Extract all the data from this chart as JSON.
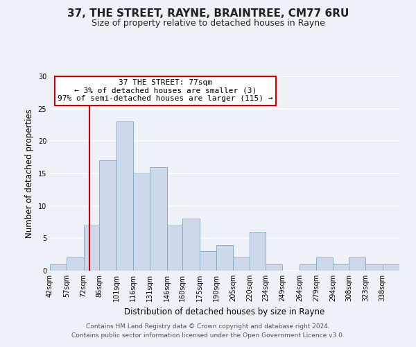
{
  "title": "37, THE STREET, RAYNE, BRAINTREE, CM77 6RU",
  "subtitle": "Size of property relative to detached houses in Rayne",
  "xlabel": "Distribution of detached houses by size in Rayne",
  "ylabel": "Number of detached properties",
  "bar_color": "#cdd9ea",
  "bar_edge_color": "#8aaec8",
  "bin_labels": [
    "42sqm",
    "57sqm",
    "72sqm",
    "86sqm",
    "101sqm",
    "116sqm",
    "131sqm",
    "146sqm",
    "160sqm",
    "175sqm",
    "190sqm",
    "205sqm",
    "220sqm",
    "234sqm",
    "249sqm",
    "264sqm",
    "279sqm",
    "294sqm",
    "308sqm",
    "323sqm",
    "338sqm"
  ],
  "bin_edges": [
    42,
    57,
    72,
    86,
    101,
    116,
    131,
    146,
    160,
    175,
    190,
    205,
    220,
    234,
    249,
    264,
    279,
    294,
    308,
    323,
    338,
    353
  ],
  "counts": [
    1,
    2,
    7,
    17,
    23,
    15,
    16,
    7,
    8,
    3,
    4,
    2,
    6,
    1,
    0,
    1,
    2,
    1,
    2,
    1,
    1
  ],
  "ylim": [
    0,
    30
  ],
  "yticks": [
    0,
    5,
    10,
    15,
    20,
    25,
    30
  ],
  "vline_x": 77,
  "vline_color": "#cc0000",
  "annotation_title": "37 THE STREET: 77sqm",
  "annotation_line1": "← 3% of detached houses are smaller (3)",
  "annotation_line2": "97% of semi-detached houses are larger (115) →",
  "annotation_box_color": "#ffffff",
  "annotation_box_edge": "#cc0000",
  "footer_line1": "Contains HM Land Registry data © Crown copyright and database right 2024.",
  "footer_line2": "Contains public sector information licensed under the Open Government Licence v3.0.",
  "background_color": "#eef2f8",
  "grid_color": "#ffffff",
  "title_fontsize": 11,
  "subtitle_fontsize": 9,
  "axis_label_fontsize": 8.5,
  "tick_fontsize": 7,
  "annotation_fontsize": 8,
  "footer_fontsize": 6.5
}
